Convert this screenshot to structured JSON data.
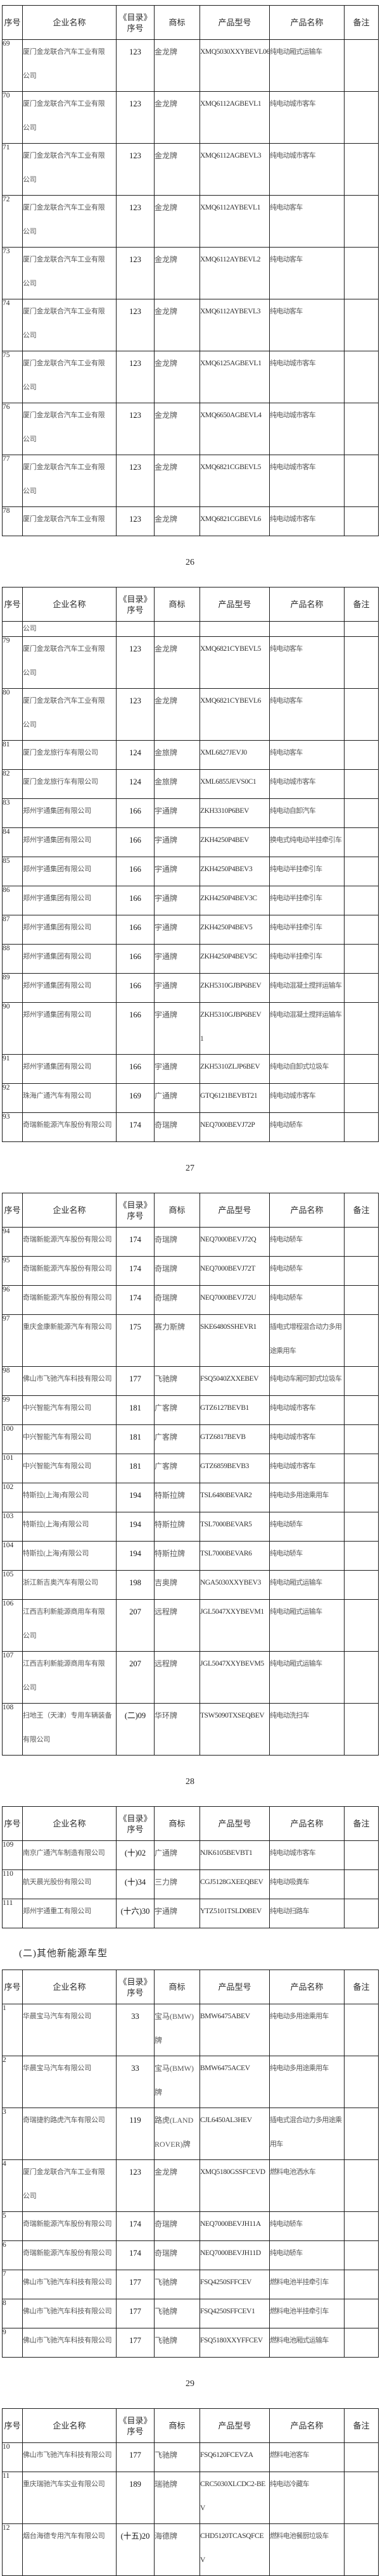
{
  "document": {
    "language": "zh-CN",
    "description_heading": "(二)其他新能源车型"
  },
  "columns": [
    "序号",
    "企业名称",
    [
      "《目录》",
      "序号"
    ],
    "商标",
    "产品型号",
    "产品名称",
    "备注"
  ],
  "blocks": [
    {
      "type": "table",
      "name": "table-page-26",
      "rows": [
        {
          "no": "69",
          "company": [
            "厦门金龙联合汽车工业有限",
            "公司"
          ],
          "catalog": "123",
          "brand": "金龙牌",
          "model": "XMQ5030XXYBEVL06",
          "product": "纯电动厢式运输车",
          "remark": ""
        },
        {
          "no": "70",
          "company": [
            "厦门金龙联合汽车工业有限",
            "公司"
          ],
          "catalog": "123",
          "brand": "金龙牌",
          "model": "XMQ6112AGBEVL1",
          "product": "纯电动城市客车",
          "remark": ""
        },
        {
          "no": "71",
          "company": [
            "厦门金龙联合汽车工业有限",
            "公司"
          ],
          "catalog": "123",
          "brand": "金龙牌",
          "model": "XMQ6112AGBEVL3",
          "product": "纯电动城市客车",
          "remark": ""
        },
        {
          "no": "72",
          "company": [
            "厦门金龙联合汽车工业有限",
            "公司"
          ],
          "catalog": "123",
          "brand": "金龙牌",
          "model": "XMQ6112AYBEVL1",
          "product": "纯电动客车",
          "remark": ""
        },
        {
          "no": "73",
          "company": [
            "厦门金龙联合汽车工业有限",
            "公司"
          ],
          "catalog": "123",
          "brand": "金龙牌",
          "model": "XMQ6112AYBEVL2",
          "product": "纯电动客车",
          "remark": ""
        },
        {
          "no": "74",
          "company": [
            "厦门金龙联合汽车工业有限",
            "公司"
          ],
          "catalog": "123",
          "brand": "金龙牌",
          "model": "XMQ6112AYBEVL3",
          "product": "纯电动客车",
          "remark": ""
        },
        {
          "no": "75",
          "company": [
            "厦门金龙联合汽车工业有限",
            "公司"
          ],
          "catalog": "123",
          "brand": "金龙牌",
          "model": "XMQ6125AGBEVL1",
          "product": "纯电动城市客车",
          "remark": ""
        },
        {
          "no": "76",
          "company": [
            "厦门金龙联合汽车工业有限",
            "公司"
          ],
          "catalog": "123",
          "brand": "金龙牌",
          "model": "XMQ6650AGBEVL4",
          "product": "纯电动城市客车",
          "remark": ""
        },
        {
          "no": "77",
          "company": [
            "厦门金龙联合汽车工业有限",
            "公司"
          ],
          "catalog": "123",
          "brand": "金龙牌",
          "model": "XMQ6821CGBEVL5",
          "product": "纯电动城市客车",
          "remark": ""
        },
        {
          "no": "78",
          "company": "厦门金龙联合汽车工业有限",
          "catalog": "123",
          "brand": "金龙牌",
          "model": "XMQ6821CGBEVL6",
          "product": "纯电动城市客车",
          "remark": ""
        }
      ]
    },
    {
      "type": "page_number",
      "text": "26"
    },
    {
      "type": "table",
      "name": "table-page-27",
      "rows": [
        {
          "no": "",
          "company": "公司",
          "catalog": "",
          "brand": "",
          "model": "",
          "product": "",
          "remark": "",
          "stub": true
        },
        {
          "no": "79",
          "company": [
            "厦门金龙联合汽车工业有限",
            "公司"
          ],
          "catalog": "123",
          "brand": "金龙牌",
          "model": "XMQ6821CYBEVL5",
          "product": "纯电动客车",
          "remark": ""
        },
        {
          "no": "80",
          "company": [
            "厦门金龙联合汽车工业有限",
            "公司"
          ],
          "catalog": "123",
          "brand": "金龙牌",
          "model": "XMQ6821CYBEVL6",
          "product": "纯电动客车",
          "remark": ""
        },
        {
          "no": "81",
          "company": "厦门金龙旅行车有限公司",
          "catalog": "124",
          "brand": "金旅牌",
          "model": "XML6827JEVJ0",
          "product": "纯电动客车",
          "remark": ""
        },
        {
          "no": "82",
          "company": "厦门金龙旅行车有限公司",
          "catalog": "124",
          "brand": "金旅牌",
          "model": "XML6855JEVS0C1",
          "product": "纯电动城市客车",
          "remark": ""
        },
        {
          "no": "83",
          "company": "郑州宇通集团有限公司",
          "catalog": "166",
          "brand": "宇通牌",
          "model": "ZKH3310P6BEV",
          "product": "纯电动自卸汽车",
          "remark": ""
        },
        {
          "no": "84",
          "company": "郑州宇通集团有限公司",
          "catalog": "166",
          "brand": "宇通牌",
          "model": "ZKH4250P4BEV",
          "product": "换电式纯电动半挂牵引车",
          "remark": ""
        },
        {
          "no": "85",
          "company": "郑州宇通集团有限公司",
          "catalog": "166",
          "brand": "宇通牌",
          "model": "ZKH4250P4BEV3",
          "product": "纯电动半挂牵引车",
          "remark": ""
        },
        {
          "no": "86",
          "company": "郑州宇通集团有限公司",
          "catalog": "166",
          "brand": "宇通牌",
          "model": "ZKH4250P4BEV3C",
          "product": "纯电动半挂牵引车",
          "remark": ""
        },
        {
          "no": "87",
          "company": "郑州宇通集团有限公司",
          "catalog": "166",
          "brand": "宇通牌",
          "model": "ZKH4250P4BEV5",
          "product": "纯电动半挂牵引车",
          "remark": ""
        },
        {
          "no": "88",
          "company": "郑州宇通集团有限公司",
          "catalog": "166",
          "brand": "宇通牌",
          "model": "ZKH4250P4BEV5C",
          "product": "纯电动半挂牵引车",
          "remark": ""
        },
        {
          "no": "89",
          "company": "郑州宇通集团有限公司",
          "catalog": "166",
          "brand": "宇通牌",
          "model": "ZKH5310GJBP6BEV",
          "product": "纯电动混凝土搅拌运输车",
          "remark": ""
        },
        {
          "no": "90",
          "company": "郑州宇通集团有限公司",
          "catalog": "166",
          "brand": "宇通牌",
          "model": [
            "ZKH5310GJBP6BEV",
            "1"
          ],
          "product": "纯电动混凝土搅拌运输车",
          "remark": ""
        },
        {
          "no": "91",
          "company": "郑州宇通集团有限公司",
          "catalog": "166",
          "brand": "宇通牌",
          "model": "ZKH5310ZLJP6BEV",
          "product": "纯电动自卸式垃圾车",
          "remark": ""
        },
        {
          "no": "92",
          "company": "珠海广通汽车有限公司",
          "catalog": "169",
          "brand": "广通牌",
          "model": "GTQ6121BEVBT21",
          "product": "纯电动城市客车",
          "remark": ""
        },
        {
          "no": "93",
          "company": "奇瑞新能源汽车股份有限公司",
          "catalog": "174",
          "brand": "奇瑞牌",
          "model": "NEQ7000BEVJ72P",
          "product": "纯电动轿车",
          "remark": ""
        }
      ]
    },
    {
      "type": "page_number",
      "text": "27"
    },
    {
      "type": "table",
      "name": "table-page-28",
      "rows": [
        {
          "no": "94",
          "company": "奇瑞新能源汽车股份有限公司",
          "catalog": "174",
          "brand": "奇瑞牌",
          "model": "NEQ7000BEVJ72Q",
          "product": "纯电动轿车",
          "remark": ""
        },
        {
          "no": "95",
          "company": "奇瑞新能源汽车股份有限公司",
          "catalog": "174",
          "brand": "奇瑞牌",
          "model": "NEQ7000BEVJ72T",
          "product": "纯电动轿车",
          "remark": ""
        },
        {
          "no": "96",
          "company": "奇瑞新能源汽车股份有限公司",
          "catalog": "174",
          "brand": "奇瑞牌",
          "model": "NEQ7000BEVJ72U",
          "product": "纯电动轿车",
          "remark": ""
        },
        {
          "no": "97",
          "company": "重庆金康新能源汽车有限公司",
          "catalog": "175",
          "brand": "赛力斯牌",
          "model": "SKE6480SSHEVR1",
          "product": [
            "插电式增程混合动力多用",
            "途乘用车"
          ],
          "remark": ""
        },
        {
          "no": "98",
          "company": "佛山市飞驰汽车科技有限公司",
          "catalog": "177",
          "brand": "飞驰牌",
          "model": "FSQ5040ZXXEBEV",
          "product": "纯电动车厢可卸式垃圾车",
          "remark": ""
        },
        {
          "no": "99",
          "company": "中兴智能汽车有限公司",
          "catalog": "181",
          "brand": "广客牌",
          "model": "GTZ6127BEVB1",
          "product": "纯电动城市客车",
          "remark": ""
        },
        {
          "no": "100",
          "company": "中兴智能汽车有限公司",
          "catalog": "181",
          "brand": "广客牌",
          "model": "GTZ6817BEVB",
          "product": "纯电动城市客车",
          "remark": ""
        },
        {
          "no": "101",
          "company": "中兴智能汽车有限公司",
          "catalog": "181",
          "brand": "广客牌",
          "model": "GTZ6859BEVB3",
          "product": "纯电动城市客车",
          "remark": ""
        },
        {
          "no": "102",
          "company": "特斯拉(上海)有限公司",
          "catalog": "194",
          "brand": "特斯拉牌",
          "model": "TSL6480BEVAR2",
          "product": "纯电动多用途乘用车",
          "remark": ""
        },
        {
          "no": "103",
          "company": "特斯拉(上海)有限公司",
          "catalog": "194",
          "brand": "特斯拉牌",
          "model": "TSL7000BEVAR5",
          "product": "纯电动轿车",
          "remark": ""
        },
        {
          "no": "104",
          "company": "特斯拉(上海)有限公司",
          "catalog": "194",
          "brand": "特斯拉牌",
          "model": "TSL7000BEVAR6",
          "product": "纯电动轿车",
          "remark": ""
        },
        {
          "no": "105",
          "company": "浙江新吉奥汽车有限公司",
          "catalog": "198",
          "brand": "吉奥牌",
          "model": "NGA5030XXYBEV3",
          "product": "纯电动厢式运输车",
          "remark": ""
        },
        {
          "no": "106",
          "company": [
            "江西吉利新能源商用车有限",
            "公司"
          ],
          "catalog": "207",
          "brand": "远程牌",
          "model": "JGL5047XXYBEVM1",
          "product": "纯电动厢式运输车",
          "remark": ""
        },
        {
          "no": "107",
          "company": [
            "江西吉利新能源商用车有限",
            "公司"
          ],
          "catalog": "207",
          "brand": "远程牌",
          "model": "JGL5047XXYBEVM5",
          "product": "纯电动厢式运输车",
          "remark": ""
        },
        {
          "no": "108",
          "company": [
            "扫地王（天津）专用车辆装备",
            "有限公司"
          ],
          "catalog": "(二)09",
          "brand": "华环牌",
          "model": "TSW5090TXSEQBEV",
          "product": "纯电动洗扫车",
          "remark": ""
        }
      ]
    },
    {
      "type": "page_number",
      "text": "28"
    },
    {
      "type": "table",
      "name": "table-page-29-top",
      "rows": [
        {
          "no": "109",
          "company": "南京广通汽车制造有限公司",
          "catalog": "(十)02",
          "brand": "广通牌",
          "model": "NJK6105BEVBT1",
          "product": "纯电动城市客车",
          "remark": ""
        },
        {
          "no": "110",
          "company": "航天晨光股份有限公司",
          "catalog": "(十)34",
          "brand": "三力牌",
          "model": "CGJ5128GXEEQBEV",
          "product": "纯电动吸粪车",
          "remark": ""
        },
        {
          "no": "111",
          "company": "郑州宇通重工有限公司",
          "catalog": "(十六)30",
          "brand": "宇通牌",
          "model": "YTZ5101TSLD0BEV",
          "product": "纯电动扫路车",
          "remark": ""
        }
      ]
    },
    {
      "type": "heading",
      "text": "(二)其他新能源车型"
    },
    {
      "type": "table",
      "name": "table-other-nev-1",
      "rows": [
        {
          "no": "1",
          "company": "华晨宝马汽车有限公司",
          "catalog": "33",
          "brand": [
            "宝马(BMW)",
            "牌"
          ],
          "model": "BMW6475ABEV",
          "product": "纯电动多用途乘用车",
          "remark": ""
        },
        {
          "no": "2",
          "company": "华晨宝马汽车有限公司",
          "catalog": "33",
          "brand": [
            "宝马(BMW)",
            "牌"
          ],
          "model": "BMW6475ACEV",
          "product": "纯电动多用途乘用车",
          "remark": ""
        },
        {
          "no": "3",
          "company": "奇瑞捷豹路虎汽车有限公司",
          "catalog": "119",
          "brand": [
            "路虎(LAND",
            "ROVER)牌"
          ],
          "model": "CJL6450AL3HEV",
          "product": [
            "插电式混合动力多用途乘",
            "用车"
          ],
          "remark": ""
        },
        {
          "no": "4",
          "company": [
            "厦门金龙联合汽车工业有限",
            "公司"
          ],
          "catalog": "123",
          "brand": "金龙牌",
          "model": "XMQ5180GSSFCEVD",
          "product": "燃料电池洒水车",
          "remark": ""
        },
        {
          "no": "5",
          "company": "奇瑞新能源汽车股份有限公司",
          "catalog": "174",
          "brand": "奇瑞牌",
          "model": "NEQ7000BEVJH11A",
          "product": "纯电动轿车",
          "remark": ""
        },
        {
          "no": "6",
          "company": "奇瑞新能源汽车股份有限公司",
          "catalog": "174",
          "brand": "奇瑞牌",
          "model": "NEQ7000BEVJH11D",
          "product": "纯电动轿车",
          "remark": ""
        },
        {
          "no": "7",
          "company": "佛山市飞驰汽车科技有限公司",
          "catalog": "177",
          "brand": "飞驰牌",
          "model": "FSQ4250SFFCEV",
          "product": "燃料电池半挂牵引车",
          "remark": ""
        },
        {
          "no": "8",
          "company": "佛山市飞驰汽车科技有限公司",
          "catalog": "177",
          "brand": "飞驰牌",
          "model": "FSQ4250SFFCEV1",
          "product": "燃料电池半挂牵引车",
          "remark": ""
        },
        {
          "no": "9",
          "company": "佛山市飞驰汽车科技有限公司",
          "catalog": "177",
          "brand": "飞驰牌",
          "model": "FSQ5180XXYFFCEV",
          "product": "燃料电池厢式运输车",
          "remark": ""
        }
      ]
    },
    {
      "type": "page_number",
      "text": "29"
    },
    {
      "type": "table",
      "name": "table-page-30-top",
      "rows": [
        {
          "no": "10",
          "company": "佛山市飞驰汽车科技有限公司",
          "catalog": "177",
          "brand": "飞驰牌",
          "model": "FSQ6120FCEVZA",
          "product": "燃料电池客车",
          "remark": ""
        },
        {
          "no": "11",
          "company": "重庆瑞驰汽车实业有限公司",
          "catalog": "189",
          "brand": "瑞驰牌",
          "model": [
            "CRC5030XLCDC2-BE",
            "V"
          ],
          "product": "纯电动冷藏车",
          "remark": ""
        },
        {
          "no": "12",
          "company": "烟台海德专用汽车有限公司",
          "catalog": "(十五)20",
          "brand": "海德牌",
          "model": [
            "CHD5120TCASQFCE",
            "V"
          ],
          "product": "燃料电池餐厨垃圾车",
          "remark": ""
        }
      ]
    }
  ]
}
